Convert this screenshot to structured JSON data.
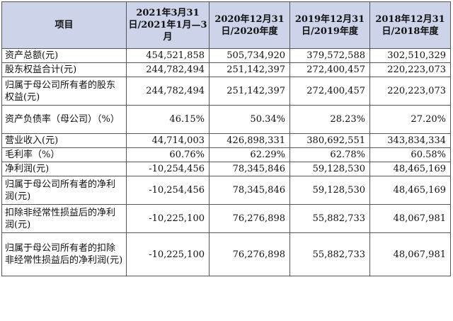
{
  "table": {
    "headers": [
      "项目",
      "2021年3月31日/2021年1月—3月",
      "2020年12月31日/2020年度",
      "2019年12月31日/2019年度",
      "2018年12月31日/2018年度"
    ],
    "rows": [
      {
        "label": "资产总额(元)",
        "values": [
          "454,521,858",
          "505,734,920",
          "379,572,588",
          "302,510,329"
        ]
      },
      {
        "label": "股东权益合计(元)",
        "values": [
          "244,782,494",
          "251,142,397",
          "272,400,457",
          "220,223,073"
        ]
      },
      {
        "label": "归属于母公司所有者的股东权益(元)",
        "values": [
          "244,782,494",
          "251,142,397",
          "272,400,457",
          "220,223,073"
        ]
      },
      {
        "label": "资产负债率（母公司）（%）",
        "values": [
          "46.15%",
          "50.34%",
          "28.23%",
          "27.20%"
        ]
      },
      {
        "label": "营业收入(元)",
        "values": [
          "44,714,003",
          "426,898,331",
          "380,692,551",
          "343,834,334"
        ]
      },
      {
        "label": "毛利率（%）",
        "values": [
          "60.76%",
          "62.29%",
          "62.78%",
          "60.58%"
        ]
      },
      {
        "label": "净利润(元)",
        "values": [
          "-10,254,456",
          "78,345,846",
          "59,128,530",
          "48,465,169"
        ]
      },
      {
        "label": "归属于母公司所有者的净利润(元)",
        "values": [
          "-10,254,456",
          "78,345,846",
          "59,128,530",
          "48,465,169"
        ]
      },
      {
        "label": "扣除非经常性损益后的净利润(元)",
        "values": [
          "-10,225,100",
          "76,276,898",
          "55,882,733",
          "48,067,981"
        ]
      },
      {
        "label": "归属于母公司所有者的扣除非经常性损益后的净利润(元)",
        "values": [
          "-10,225,100",
          "76,276,898",
          "55,882,733",
          "48,067,981"
        ]
      }
    ]
  },
  "colors": {
    "header_background": "#cdd3e8",
    "border": "#555555",
    "text": "#111111"
  }
}
